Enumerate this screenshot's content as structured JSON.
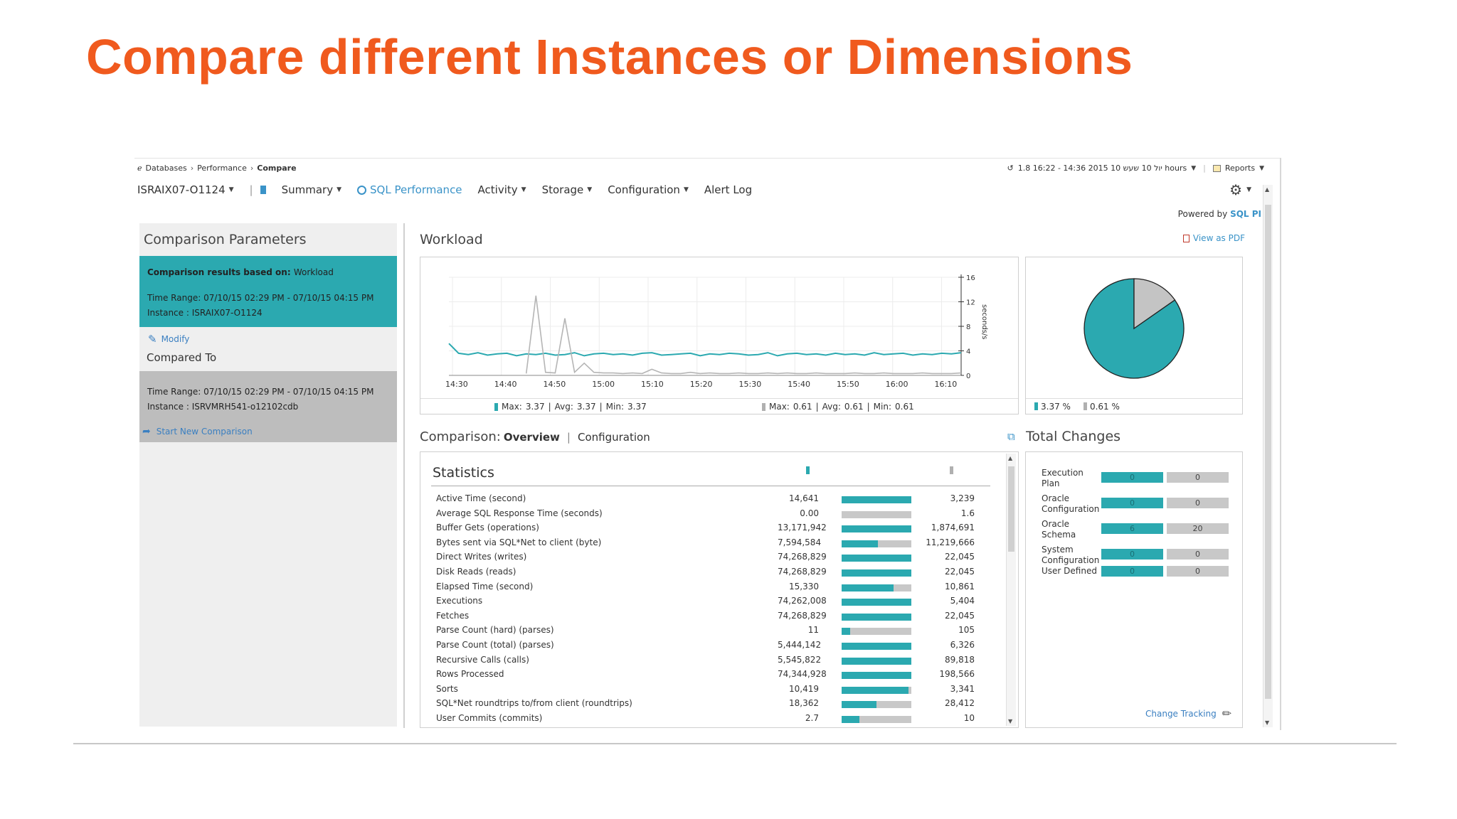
{
  "slide": {
    "title": "Compare different Instances or Dimensions"
  },
  "breadcrumb": {
    "root_icon": "database-icon",
    "items": [
      "Databases",
      "Performance"
    ],
    "current": "Compare"
  },
  "header": {
    "time_range": "1.8 16:22 - 14:36 2015 יול 10 שעש 10 hours",
    "reports_label": "Reports",
    "powered_by": "Powered by",
    "powered_brand": "SQL PI"
  },
  "nav": {
    "instance": "ISRAIX07-O1124",
    "items": [
      {
        "label": "Summary",
        "dropdown": true
      },
      {
        "label": "SQL Performance",
        "dropdown": false,
        "active": true
      },
      {
        "label": "Activity",
        "dropdown": true
      },
      {
        "label": "Storage",
        "dropdown": true
      },
      {
        "label": "Configuration",
        "dropdown": true
      },
      {
        "label": "Alert Log",
        "dropdown": false
      }
    ]
  },
  "left_panel": {
    "title": "Comparison Parameters",
    "basis_label": "Comparison results based on:",
    "basis_value": "Workload",
    "primary_time_range": "Time Range: 07/10/15 02:29 PM - 07/10/15 04:15 PM",
    "primary_instance": "Instance : ISRAIX07-O1124",
    "modify_label": "Modify",
    "compared_to_label": "Compared To",
    "compare_time_range": "Time Range: 07/10/15 02:29 PM - 07/10/15 04:15 PM",
    "compare_instance": "Instance : ISRVMRH541-o12102cdb",
    "new_comparison_label": "Start New Comparison"
  },
  "workload": {
    "title": "Workload",
    "view_pdf": "View as PDF",
    "legend": [
      {
        "max_label": "Max:",
        "max": "3.37",
        "avg_label": "Avg:",
        "avg": "3.37",
        "min_label": "Min:",
        "min": "3.37",
        "color": "#2ba9b0"
      },
      {
        "max_label": "Max:",
        "max": "0.61",
        "avg_label": "Avg:",
        "avg": "0.61",
        "min_label": "Min:",
        "min": "0.61",
        "color": "#b0b0b0"
      }
    ],
    "pie_legend": [
      "3.37 %",
      "0.61 %"
    ]
  },
  "chart_data": [
    {
      "type": "line",
      "title": "Workload",
      "ylabel": "seconds/s",
      "ylim": [
        0,
        16
      ],
      "yticks": [
        0,
        4,
        8,
        12,
        16
      ],
      "xticks": [
        "14:30",
        "14:40",
        "14:50",
        "15:00",
        "15:10",
        "15:20",
        "15:30",
        "15:40",
        "15:50",
        "16:00",
        "16:10"
      ],
      "grid": true,
      "series": [
        {
          "color": "#2ba9b0",
          "values": [
            5.2,
            3.6,
            3.4,
            3.7,
            3.3,
            3.5,
            3.6,
            3.2,
            3.5,
            3.4,
            3.6,
            3.3,
            3.4,
            3.7,
            3.2,
            3.5,
            3.6,
            3.4,
            3.5,
            3.3,
            3.6,
            3.7,
            3.3,
            3.4,
            3.5,
            3.6,
            3.2,
            3.5,
            3.4,
            3.6,
            3.5,
            3.3,
            3.4,
            3.7,
            3.2,
            3.5,
            3.6,
            3.4,
            3.5,
            3.3,
            3.6,
            3.4,
            3.5,
            3.3,
            3.7,
            3.4,
            3.5,
            3.6,
            3.3,
            3.5,
            3.4,
            3.6,
            3.5,
            3.7
          ]
        },
        {
          "color": "#b5b5b5",
          "values": [
            null,
            null,
            null,
            null,
            null,
            null,
            null,
            null,
            0.3,
            13.0,
            0.5,
            0.4,
            9.3,
            0.5,
            2.0,
            0.5,
            0.4,
            0.4,
            0.3,
            0.4,
            0.3,
            1.0,
            0.4,
            0.3,
            0.3,
            0.5,
            0.3,
            0.4,
            0.3,
            0.3,
            0.4,
            0.3,
            0.3,
            0.4,
            0.3,
            0.4,
            0.3,
            0.3,
            0.4,
            0.3,
            0.3,
            0.3,
            0.4,
            0.3,
            0.3,
            0.4,
            0.3,
            0.3,
            0.3,
            0.4,
            0.3,
            0.3,
            0.3,
            0.4
          ]
        }
      ]
    },
    {
      "type": "pie",
      "slices": [
        {
          "label": "3.37 %",
          "value": 84.7,
          "color": "#2ba9b0"
        },
        {
          "label": "0.61 %",
          "value": 15.3,
          "color": "#c4c4c4"
        }
      ]
    }
  ],
  "comparison": {
    "title": "Comparison:",
    "tab_active": "Overview",
    "tab_other": "Configuration",
    "stats_title": "Statistics",
    "col_colors": [
      "#2ba9b0",
      "#b0b0b0"
    ],
    "rows": [
      {
        "label": "Active Time (second)",
        "v1": "14,641",
        "v2": "3,239",
        "fill": 1.0
      },
      {
        "label": "Average SQL Response Time (seconds)",
        "v1": "0.00",
        "v2": "1.6",
        "fill": 0.0
      },
      {
        "label": "Buffer Gets (operations)",
        "v1": "13,171,942",
        "v2": "1,874,691",
        "fill": 1.0
      },
      {
        "label": "Bytes sent via SQL*Net to client (byte)",
        "v1": "7,594,584",
        "v2": "11,219,666",
        "fill": 0.52
      },
      {
        "label": "Direct Writes (writes)",
        "v1": "74,268,829",
        "v2": "22,045",
        "fill": 1.0
      },
      {
        "label": "Disk Reads (reads)",
        "v1": "74,268,829",
        "v2": "22,045",
        "fill": 1.0
      },
      {
        "label": "Elapsed Time (second)",
        "v1": "15,330",
        "v2": "10,861",
        "fill": 0.74
      },
      {
        "label": "Executions",
        "v1": "74,262,008",
        "v2": "5,404",
        "fill": 1.0
      },
      {
        "label": "Fetches",
        "v1": "74,268,829",
        "v2": "22,045",
        "fill": 1.0
      },
      {
        "label": "Parse Count (hard) (parses)",
        "v1": "11",
        "v2": "105",
        "fill": 0.12
      },
      {
        "label": "Parse Count (total) (parses)",
        "v1": "5,444,142",
        "v2": "6,326",
        "fill": 1.0
      },
      {
        "label": "Recursive Calls (calls)",
        "v1": "5,545,822",
        "v2": "89,818",
        "fill": 1.0
      },
      {
        "label": "Rows Processed",
        "v1": "74,344,928",
        "v2": "198,566",
        "fill": 1.0
      },
      {
        "label": "Sorts",
        "v1": "10,419",
        "v2": "3,341",
        "fill": 0.96
      },
      {
        "label": "SQL*Net roundtrips to/from client (roundtrips)",
        "v1": "18,362",
        "v2": "28,412",
        "fill": 0.5
      },
      {
        "label": "User Commits (commits)",
        "v1": "2.7",
        "v2": "10",
        "fill": 0.26
      }
    ]
  },
  "total_changes": {
    "title": "Total Changes",
    "rows": [
      {
        "label": "Execution Plan",
        "v1": "0",
        "v2": "0"
      },
      {
        "label": "Oracle Configuration",
        "v1": "0",
        "v2": "0"
      },
      {
        "label": "Oracle Schema",
        "v1": "6",
        "v2": "20"
      },
      {
        "label": "System Configuration",
        "v1": "0",
        "v2": "0"
      },
      {
        "label": "User Defined",
        "v1": "0",
        "v2": "0"
      }
    ],
    "change_tracking": "Change Tracking"
  }
}
